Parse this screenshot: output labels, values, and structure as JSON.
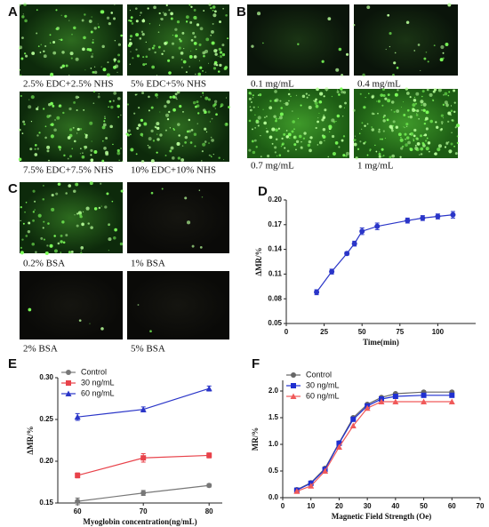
{
  "panels": [
    {
      "label": "A",
      "captions": [
        "2.5% EDC+2.5% NHS",
        "5% EDC+5% NHS",
        "7.5% EDC+7.5% NHS",
        "10% EDC+10% NHS"
      ]
    },
    {
      "label": "B",
      "captions": [
        "0.1 mg/mL",
        "0.4 mg/mL",
        "0.7 mg/mL",
        "1 mg/mL"
      ]
    },
    {
      "label": "C",
      "captions": [
        "0.2% BSA",
        "1% BSA",
        "2% BSA",
        "5% BSA"
      ]
    }
  ],
  "chart_data": [
    {
      "type": "line",
      "panel": "D",
      "x_label": "Time(min)",
      "y_label": "ΔMR/%",
      "xlim": [
        0,
        125
      ],
      "xticks": [
        0,
        25,
        50,
        75,
        100
      ],
      "ylim": [
        0.05,
        0.2
      ],
      "yticks": [
        0.05,
        0.08,
        0.11,
        0.14,
        0.17,
        {
          "value": 0.2,
          "label": "0.20"
        }
      ],
      "x": [
        20,
        30,
        40,
        45,
        50,
        60,
        80,
        90,
        100,
        110
      ],
      "series": [
        {
          "color": "#2a35c8",
          "marker": "circle",
          "values": [
            0.088,
            0.113,
            0.135,
            0.147,
            0.162,
            0.168,
            0.175,
            0.178,
            0.18,
            0.182
          ],
          "errors": [
            0.003,
            0.003,
            0.002,
            0.003,
            0.004,
            0.004,
            0.003,
            0.003,
            0.003,
            0.004
          ]
        }
      ]
    },
    {
      "type": "line",
      "panel": "E",
      "x_label": "Myoglobin concentration(ng/mL)",
      "y_label": "ΔMR/%",
      "xlim": [
        57,
        82
      ],
      "xticks": [
        60,
        70,
        80
      ],
      "ylim": [
        0.15,
        0.3
      ],
      "yticks": [
        0.15,
        {
          "value": 0.2,
          "label": "0.20"
        },
        0.25,
        {
          "value": 0.3,
          "label": "0.30"
        }
      ],
      "legend": "upper left",
      "x": [
        60,
        70,
        80
      ],
      "series": [
        {
          "name": "Control",
          "color": "#777777",
          "marker": "circle",
          "values": [
            0.152,
            0.162,
            0.171
          ],
          "errors": [
            0.004,
            0.003,
            0.002
          ]
        },
        {
          "name": "30 ng/mL",
          "color": "#e8424a",
          "marker": "square",
          "values": [
            0.183,
            0.204,
            0.207
          ],
          "errors": [
            0.003,
            0.005,
            0.003
          ]
        },
        {
          "name": "60 ng/mL",
          "color": "#2a35c8",
          "marker": "triangle",
          "values": [
            0.253,
            0.262,
            0.287
          ],
          "errors": [
            0.004,
            0.003,
            0.003
          ]
        }
      ]
    },
    {
      "type": "line",
      "panel": "F",
      "x_label": "Magnetic Field Strength (Oe)",
      "y_label": "MR/%",
      "xlim": [
        0,
        70
      ],
      "xticks": [
        0,
        10,
        20,
        30,
        40,
        50,
        60,
        70
      ],
      "ylim": [
        0,
        2.2
      ],
      "yticks": [
        {
          "value": 0,
          "label": "0.0"
        },
        0.5,
        {
          "value": 1,
          "label": "1.0"
        },
        1.5,
        {
          "value": 2,
          "label": "2.0"
        }
      ],
      "legend": "upper left",
      "x": [
        5,
        10,
        15,
        20,
        25,
        30,
        35,
        40,
        50,
        60
      ],
      "series": [
        {
          "name": "Control",
          "color": "#666666",
          "marker": "circle",
          "values": [
            0.15,
            0.28,
            0.55,
            1.03,
            1.5,
            1.75,
            1.88,
            1.95,
            1.98,
            1.98
          ]
        },
        {
          "name": "30 ng/mL",
          "color": "#1f2fd0",
          "marker": "square",
          "values": [
            0.14,
            0.27,
            0.53,
            1.02,
            1.47,
            1.72,
            1.85,
            1.9,
            1.92,
            1.92
          ]
        },
        {
          "name": "60 ng/mL",
          "color": "#f05a5a",
          "marker": "triangle",
          "values": [
            0.12,
            0.22,
            0.5,
            0.95,
            1.35,
            1.68,
            1.8,
            1.8,
            1.8,
            1.8
          ]
        }
      ]
    }
  ]
}
